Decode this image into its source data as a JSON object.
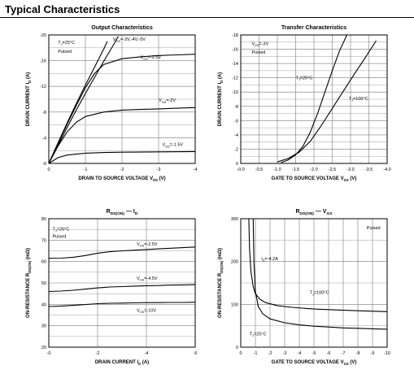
{
  "page": {
    "title": "Typical Characteristics"
  },
  "chart_data": [
    {
      "type": "line",
      "title": "Output Characteristics",
      "xlabel": "DRAIN TO SOURCE VOLTAGE",
      "xlabel_symbol": "V",
      "xlabel_sub": "DS",
      "xlabel_unit": "(V)",
      "ylabel": "DRAIN CURRENT",
      "ylabel_symbol": "I",
      "ylabel_sub": "D",
      "ylabel_unit": "(A)",
      "xlim": [
        0,
        -4
      ],
      "ylim": [
        0,
        -20
      ],
      "xticks": [
        0,
        -1,
        -2,
        -3,
        -4
      ],
      "yticks": [
        0,
        -4,
        -8,
        -12,
        -16,
        -20
      ],
      "xtick_labels": [
        "0",
        "-1",
        "-2",
        "-3",
        "-4"
      ],
      "ytick_labels": [
        "-0",
        "-4",
        "-8",
        "-12",
        "-16",
        "-20"
      ],
      "grid": true,
      "notes": [
        {
          "id": "temp",
          "text": "T",
          "sub": "J",
          "tail": "=25°C",
          "at": [
            -0.25,
            -18.6
          ]
        },
        {
          "id": "pulsed",
          "text": "Pulsed",
          "sub": "",
          "tail": "",
          "at": [
            -0.25,
            -17.2
          ]
        }
      ],
      "series": [
        {
          "name": "V_GS=-3V,-4V,-5V",
          "label": {
            "text": "V",
            "sub": "GS",
            "tail": "=-3V,-4V,-5V",
            "at": [
              -1.75,
              -19.1
            ]
          },
          "x": [
            0,
            -0.25,
            -0.5,
            -0.75,
            -1.0,
            -1.25,
            -1.5,
            -1.6
          ],
          "y": [
            0,
            -3.2,
            -6.3,
            -9.3,
            -12.2,
            -15.0,
            -17.8,
            -19.0
          ]
        },
        {
          "name": "V_GS=-4V",
          "label": null,
          "x": [
            0,
            -0.25,
            -0.5,
            -0.75,
            -1.0,
            -1.25,
            -1.5,
            -1.75,
            -1.9
          ],
          "y": [
            0,
            -2.8,
            -5.6,
            -8.3,
            -10.9,
            -13.4,
            -15.9,
            -18.3,
            -19.8
          ]
        },
        {
          "name": "V_GS=-2.5V",
          "label": {
            "text": "V",
            "sub": "GS",
            "tail": "=-2.5V",
            "at": [
              -2.5,
              -16.3
            ]
          },
          "x": [
            0,
            -0.25,
            -0.5,
            -0.75,
            -1.0,
            -1.25,
            -1.5,
            -2.0,
            -2.5,
            -3.0,
            -3.5,
            -4.0
          ],
          "y": [
            0,
            -3.1,
            -6.1,
            -9.0,
            -11.8,
            -14.0,
            -15.4,
            -16.3,
            -16.6,
            -16.8,
            -16.9,
            -17.0
          ]
        },
        {
          "name": "V_GS=-2V",
          "label": {
            "text": "V",
            "sub": "GS",
            "tail": "=-2V",
            "at": [
              -3.0,
              -9.6
            ]
          },
          "x": [
            0,
            -0.25,
            -0.5,
            -0.75,
            -1.0,
            -1.5,
            -2.0,
            -2.5,
            -3.0,
            -3.5,
            -4.0
          ],
          "y": [
            0,
            -2.7,
            -4.9,
            -6.4,
            -7.3,
            -8.0,
            -8.3,
            -8.4,
            -8.5,
            -8.6,
            -8.7
          ]
        },
        {
          "name": "V_GS=-1.5V",
          "label": {
            "text": "V",
            "sub": "GS",
            "tail": "=-1.5V",
            "at": [
              -3.1,
              -2.7
            ]
          },
          "x": [
            0,
            -0.25,
            -0.5,
            -1.0,
            -1.5,
            -2.0,
            -3.0,
            -4.0
          ],
          "y": [
            0,
            -0.9,
            -1.3,
            -1.6,
            -1.7,
            -1.75,
            -1.8,
            -1.85
          ]
        }
      ]
    },
    {
      "type": "line",
      "title": "Transfer Characteristics",
      "xlabel": "GATE TO SOURCE VOLTAGE",
      "xlabel_symbol": "V",
      "xlabel_sub": "GS",
      "xlabel_unit": "(V)",
      "ylabel": "DRAIN CURRENT",
      "ylabel_symbol": "I",
      "ylabel_sub": "D",
      "ylabel_unit": "(A)",
      "xlim": [
        0,
        -4
      ],
      "ylim": [
        0,
        -18
      ],
      "xticks": [
        0,
        -0.5,
        -1.0,
        -1.5,
        -2.0,
        -2.5,
        -3.0,
        -3.5,
        -4.0
      ],
      "yticks": [
        0,
        -2,
        -4,
        -6,
        -8,
        -10,
        -12,
        -14,
        -16,
        -18
      ],
      "xtick_labels": [
        "-0.0",
        "-0.5",
        "-1.0",
        "-1.5",
        "-2.0",
        "-2.5",
        "-3.0",
        "-3.5",
        "-4.0"
      ],
      "ytick_labels": [
        "0",
        "-2",
        "-4",
        "-6",
        "-8",
        "-10",
        "-12",
        "-14",
        "-16",
        "-18"
      ],
      "grid": true,
      "notes": [
        {
          "id": "vds",
          "text": "V",
          "sub": "DS",
          "tail": "=-3V",
          "at": [
            -0.3,
            -16.6
          ]
        },
        {
          "id": "pulsed",
          "text": "Pulsed",
          "sub": "",
          "tail": "",
          "at": [
            -0.3,
            -15.4
          ]
        }
      ],
      "series": [
        {
          "name": "T_J=25°C",
          "label": {
            "text": "T",
            "sub": "J",
            "tail": "=25°C",
            "at": [
              -1.5,
              -11.8
            ]
          },
          "x": [
            -1.1,
            -1.3,
            -1.5,
            -1.7,
            -1.9,
            -2.1,
            -2.3,
            -2.5,
            -2.7,
            -2.9
          ],
          "y": [
            -0.1,
            -0.5,
            -1.2,
            -2.4,
            -4.4,
            -7.0,
            -10.0,
            -13.0,
            -15.8,
            -18.0
          ]
        },
        {
          "name": "T_J=100°C",
          "label": {
            "text": "T",
            "sub": "J",
            "tail": "=100°C",
            "at": [
              -2.95,
              -8.9
            ]
          },
          "x": [
            -1.0,
            -1.3,
            -1.6,
            -1.9,
            -2.2,
            -2.5,
            -2.8,
            -3.1,
            -3.4,
            -3.7
          ],
          "y": [
            -0.2,
            -0.7,
            -1.6,
            -3.1,
            -5.3,
            -7.7,
            -10.1,
            -12.5,
            -14.8,
            -17.2
          ]
        }
      ]
    },
    {
      "type": "line",
      "title": "R",
      "title_sub": "DS(ON)",
      "title_tail": "I",
      "title_tail_sub": "D",
      "xlabel": "DRAIN CURRENT",
      "xlabel_symbol": "I",
      "xlabel_sub": "D",
      "xlabel_unit": "(A)",
      "ylabel": "ON-RESISTANCE",
      "ylabel_symbol": "R",
      "ylabel_sub": "DS(ON)",
      "ylabel_unit": "(mΩ)",
      "xlim": [
        0,
        -6
      ],
      "ylim": [
        20,
        80
      ],
      "xticks": [
        0,
        -2,
        -4,
        -6
      ],
      "yticks": [
        20,
        30,
        40,
        50,
        60,
        70,
        80
      ],
      "xtick_labels": [
        "-0",
        "-2",
        "-4",
        "-6"
      ],
      "ytick_labels": [
        "20",
        "30",
        "40",
        "50",
        "60",
        "70",
        "80"
      ],
      "grid": true,
      "notes": [
        {
          "id": "temp",
          "text": "T",
          "sub": "J",
          "tail": "=25°C",
          "at": [
            -0.15,
            74.5
          ]
        },
        {
          "id": "pulsed",
          "text": "Pulsed",
          "sub": "",
          "tail": "",
          "at": [
            -0.15,
            71.0
          ]
        }
      ],
      "series": [
        {
          "name": "V_GS=-2.5V",
          "label": {
            "text": "V",
            "sub": "GS",
            "tail": "=-2.5V",
            "at": [
              -3.6,
              67.5
            ]
          },
          "x": [
            0,
            -0.5,
            -1.0,
            -1.5,
            -2.0,
            -2.5,
            -3.0,
            -3.5,
            -4.0,
            -4.5,
            -5.0,
            -5.5,
            -6.0
          ],
          "y": [
            61.5,
            61.6,
            62.0,
            62.8,
            63.9,
            64.6,
            65.0,
            65.3,
            65.6,
            65.9,
            66.2,
            66.5,
            66.8
          ]
        },
        {
          "name": "V_GS=-4.5V",
          "label": {
            "text": "V",
            "sub": "GS",
            "tail": "=-4.5V",
            "at": [
              -3.6,
              51.5
            ]
          },
          "x": [
            0,
            -0.5,
            -1.0,
            -1.5,
            -2.0,
            -2.5,
            -3.0,
            -3.5,
            -4.0,
            -4.5,
            -5.0,
            -5.5,
            -6.0
          ],
          "y": [
            46.0,
            46.2,
            46.6,
            47.1,
            47.7,
            48.1,
            48.3,
            48.5,
            48.7,
            48.8,
            49.0,
            49.1,
            49.2
          ]
        },
        {
          "name": "V_GS=-10V",
          "label": {
            "text": "V",
            "sub": "GS",
            "tail": "=-10V",
            "at": [
              -3.6,
              36.5
            ]
          },
          "x": [
            0,
            -0.5,
            -1.0,
            -1.5,
            -2.0,
            -2.5,
            -3.0,
            -3.5,
            -4.0,
            -4.5,
            -5.0,
            -5.5,
            -6.0
          ],
          "y": [
            39.0,
            39.2,
            39.5,
            39.9,
            40.3,
            40.5,
            40.6,
            40.7,
            40.8,
            40.8,
            40.9,
            40.9,
            41.0
          ]
        }
      ]
    },
    {
      "type": "line",
      "title": "R",
      "title_sub": "DS(ON)",
      "title_tail": "V",
      "title_tail_sub": "GS",
      "xlabel": "GATE TO SOURCE VOLTAGE",
      "xlabel_symbol": "V",
      "xlabel_sub": "GS",
      "xlabel_unit": "(V)",
      "ylabel": "ON-RESISTANCE",
      "ylabel_symbol": "R",
      "ylabel_sub": "DS(ON)",
      "ylabel_unit": "(mΩ)",
      "xlim": [
        0,
        -10
      ],
      "ylim": [
        0,
        300
      ],
      "xticks": [
        0,
        -1,
        -2,
        -3,
        -4,
        -5,
        -6,
        -7,
        -8,
        -9,
        -10
      ],
      "yticks": [
        0,
        100,
        200,
        300
      ],
      "xtick_labels": [
        "0",
        "-1",
        "-2",
        "-3",
        "-4",
        "-5",
        "-6",
        "-7",
        "-8",
        "-9",
        "-10"
      ],
      "ytick_labels": [
        "0",
        "100",
        "200",
        "300"
      ],
      "grid": true,
      "notes": [
        {
          "id": "pulsed",
          "text": "Pulsed",
          "sub": "",
          "tail": "",
          "at": [
            -8.6,
            275
          ]
        },
        {
          "id": "id",
          "text": "I",
          "sub": "D",
          "tail": "=-4.2A",
          "at": [
            -1.4,
            203
          ]
        }
      ],
      "series": [
        {
          "name": "T_J=25°C",
          "label": {
            "text": "T",
            "sub": "J",
            "tail": "=25°C",
            "at": [
              -0.6,
              28
            ]
          },
          "x": [
            -0.85,
            -0.9,
            -1.0,
            -1.2,
            -1.5,
            -2.0,
            -3.0,
            -4.0,
            -5.0,
            -6.0,
            -7.0,
            -8.0,
            -9.0,
            -10.0
          ],
          "y": [
            300,
            200,
            130,
            95,
            78,
            66,
            57,
            52,
            49,
            47,
            45,
            44,
            43,
            42
          ]
        },
        {
          "name": "T_J=100°C",
          "label": {
            "text": "T",
            "sub": "J",
            "tail": "=100°C",
            "at": [
              -4.7,
              124
            ]
          },
          "x": [
            -0.55,
            -0.6,
            -0.7,
            -0.85,
            -1.0,
            -1.3,
            -1.7,
            -2.5,
            -3.5,
            -5.0,
            -6.5,
            -8.0,
            -10.0
          ],
          "y": [
            300,
            230,
            175,
            142,
            125,
            112,
            104,
            97,
            93,
            89,
            87,
            85,
            83
          ]
        }
      ]
    }
  ]
}
